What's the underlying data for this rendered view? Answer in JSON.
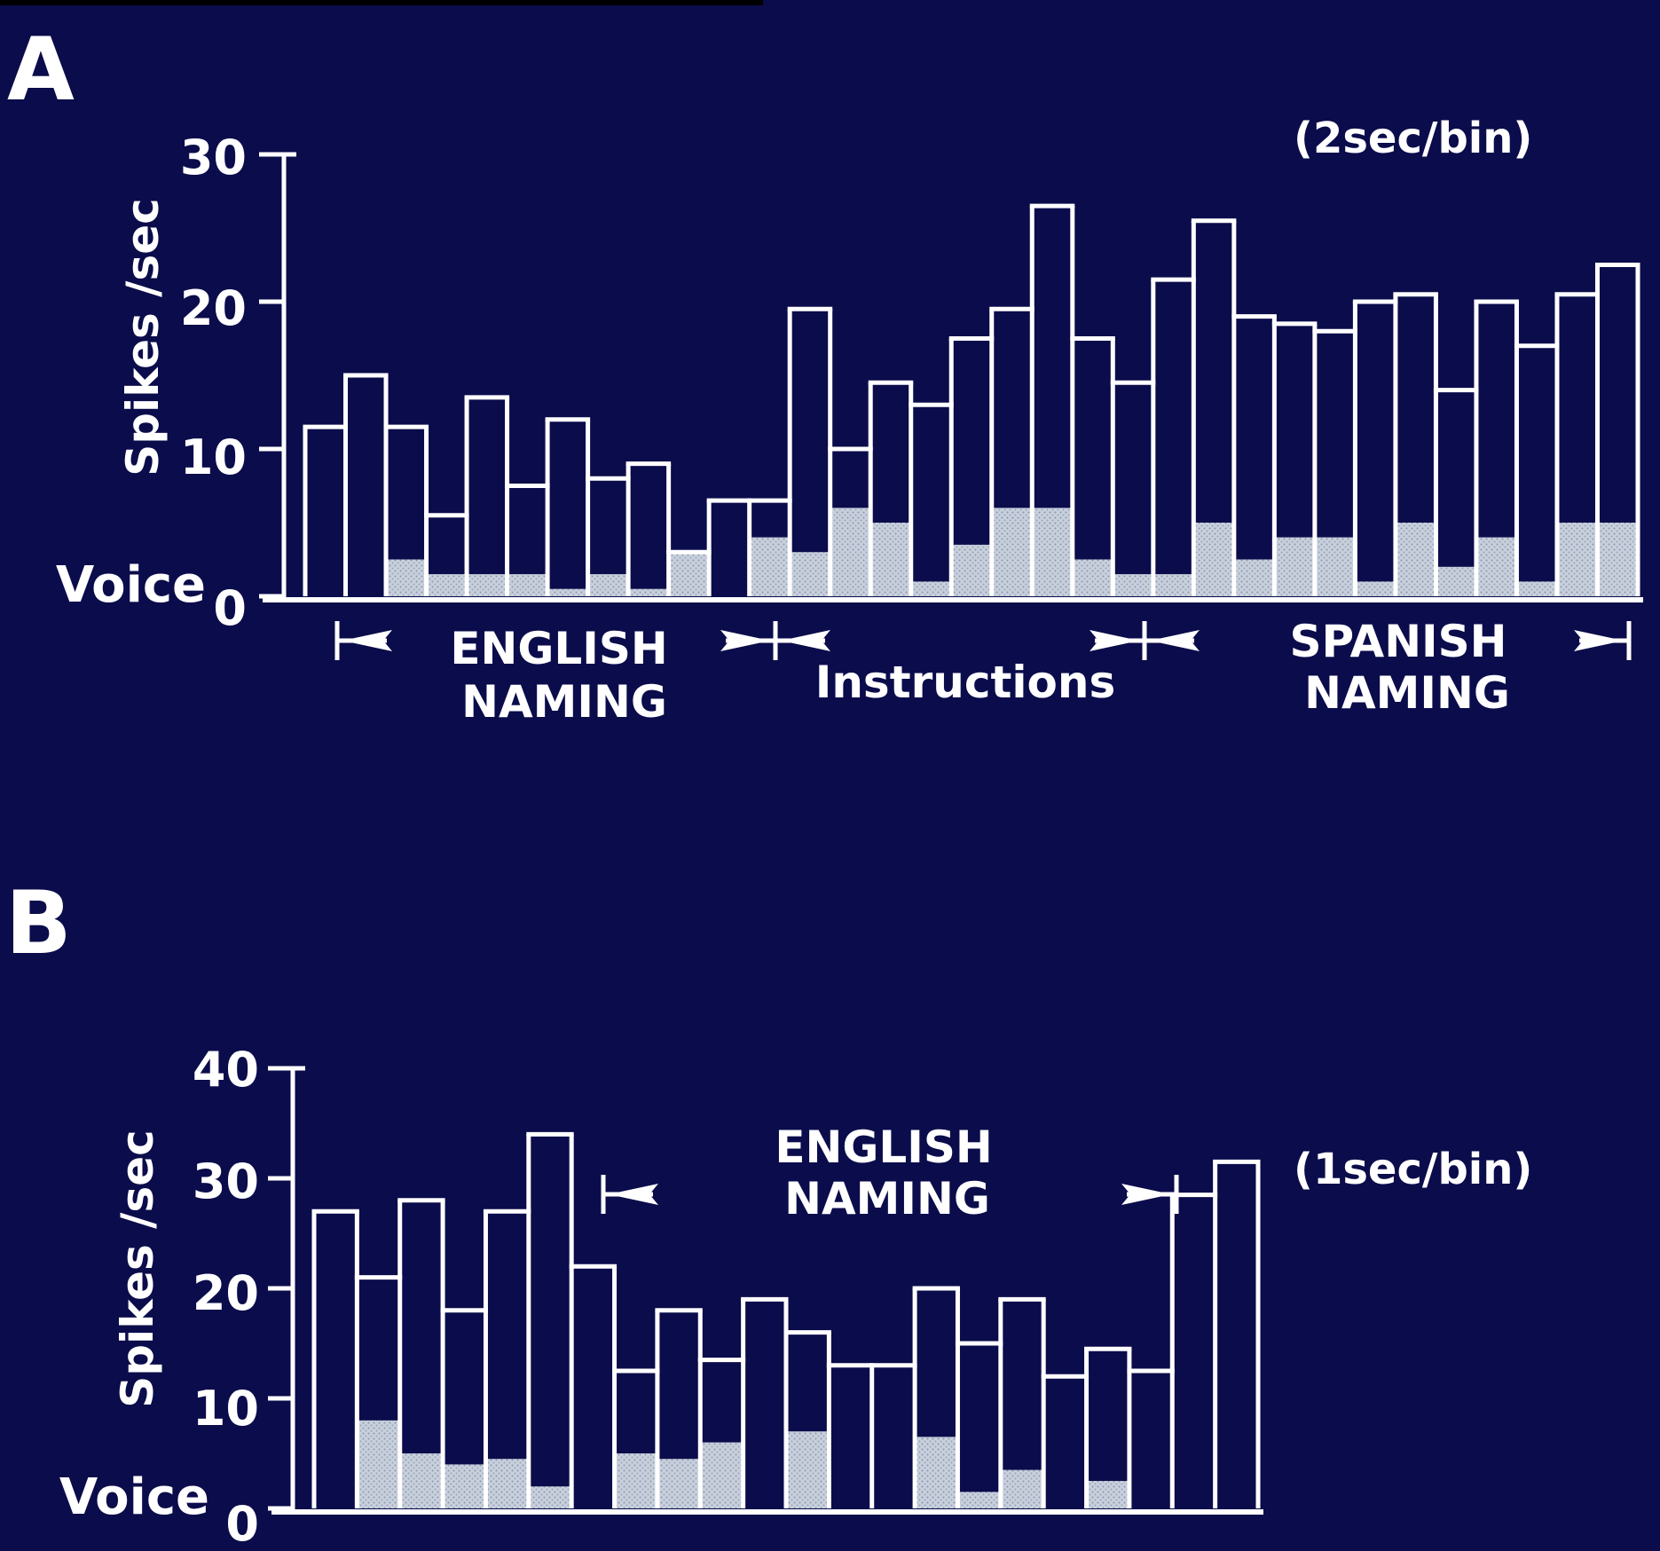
{
  "panels": [
    {
      "label": "A",
      "bin_note": "(2sec/bin)",
      "ylabel": "Spikes /sec",
      "zero_label": "Voice",
      "ticks": [
        "0",
        "10",
        "20",
        "30"
      ],
      "segments": [
        {
          "label": "ENGLISH",
          "label2": "NAMING"
        },
        {
          "label": "Instructions",
          "label2": ""
        },
        {
          "label": "SPANISH",
          "label2": "NAMING"
        }
      ]
    },
    {
      "label": "B",
      "bin_note": "(1sec/bin)",
      "ylabel": "Spikes /sec",
      "zero_label": "Voice",
      "ticks": [
        "0",
        "10",
        "20",
        "30",
        "40"
      ],
      "segments": [
        {
          "label": "ENGLISH",
          "label2": "NAMING"
        }
      ]
    }
  ],
  "chart_data": [
    {
      "type": "bar",
      "title": "",
      "panel": "A",
      "bin_note": "(2sec/bin)",
      "xlabel": "",
      "ylabel": "Spikes /sec",
      "ylim": [
        0,
        30
      ],
      "yticks": [
        0,
        10,
        20,
        30
      ],
      "grid": false,
      "legend": "none",
      "series": [
        {
          "name": "",
          "values": [
            11.5,
            15.0,
            11.5,
            5.5,
            13.5,
            7.5,
            12.0,
            8.0,
            9.0,
            3.0,
            6.5,
            6.5,
            19.5,
            10.0,
            14.5,
            13.0,
            17.5,
            19.5,
            26.5,
            17.5,
            14.5,
            21.5,
            25.5,
            19.0,
            18.5,
            18.0,
            20.0,
            20.5,
            14.0,
            20.0,
            17.0,
            20.5,
            22.5
          ]
        },
        {
          "name": "Voice",
          "values": [
            0,
            0,
            2.5,
            1.5,
            1.5,
            1.5,
            0.5,
            1.5,
            0.5,
            3.0,
            0,
            4.0,
            3.0,
            6.0,
            5.0,
            1.0,
            3.5,
            6.0,
            6.0,
            2.5,
            1.5,
            1.5,
            5.0,
            2.5,
            4.0,
            4.0,
            1.0,
            5.0,
            2.0,
            4.0,
            1.0,
            5.0,
            5.0
          ]
        }
      ],
      "annotations": [
        {
          "text": "ENGLISH NAMING",
          "from_bin": 1,
          "to_bin": 11
        },
        {
          "text": "Instructions",
          "from_bin": 11,
          "to_bin": 21
        },
        {
          "text": "SPANISH NAMING",
          "from_bin": 21,
          "to_bin": 33
        }
      ]
    },
    {
      "type": "bar",
      "title": "",
      "panel": "B",
      "bin_note": "(1sec/bin)",
      "xlabel": "",
      "ylabel": "Spikes /sec",
      "ylim": [
        0,
        40
      ],
      "yticks": [
        0,
        10,
        20,
        30,
        40
      ],
      "grid": false,
      "legend": "none",
      "series": [
        {
          "name": "",
          "values": [
            27,
            21,
            28,
            18,
            27,
            34,
            22,
            12.5,
            18,
            13.5,
            19,
            16,
            13,
            13,
            20,
            15,
            19,
            12,
            14.5,
            12.5,
            28.5,
            31.5
          ]
        },
        {
          "name": "Voice",
          "values": [
            0,
            8,
            5,
            4,
            4.5,
            2,
            0,
            5,
            4.5,
            6,
            0,
            7,
            0,
            0,
            6.5,
            1.5,
            3.5,
            0,
            2.5,
            0,
            0,
            0
          ]
        }
      ],
      "annotations": [
        {
          "text": "ENGLISH NAMING",
          "from_bin": 7,
          "to_bin": 20
        }
      ]
    }
  ]
}
